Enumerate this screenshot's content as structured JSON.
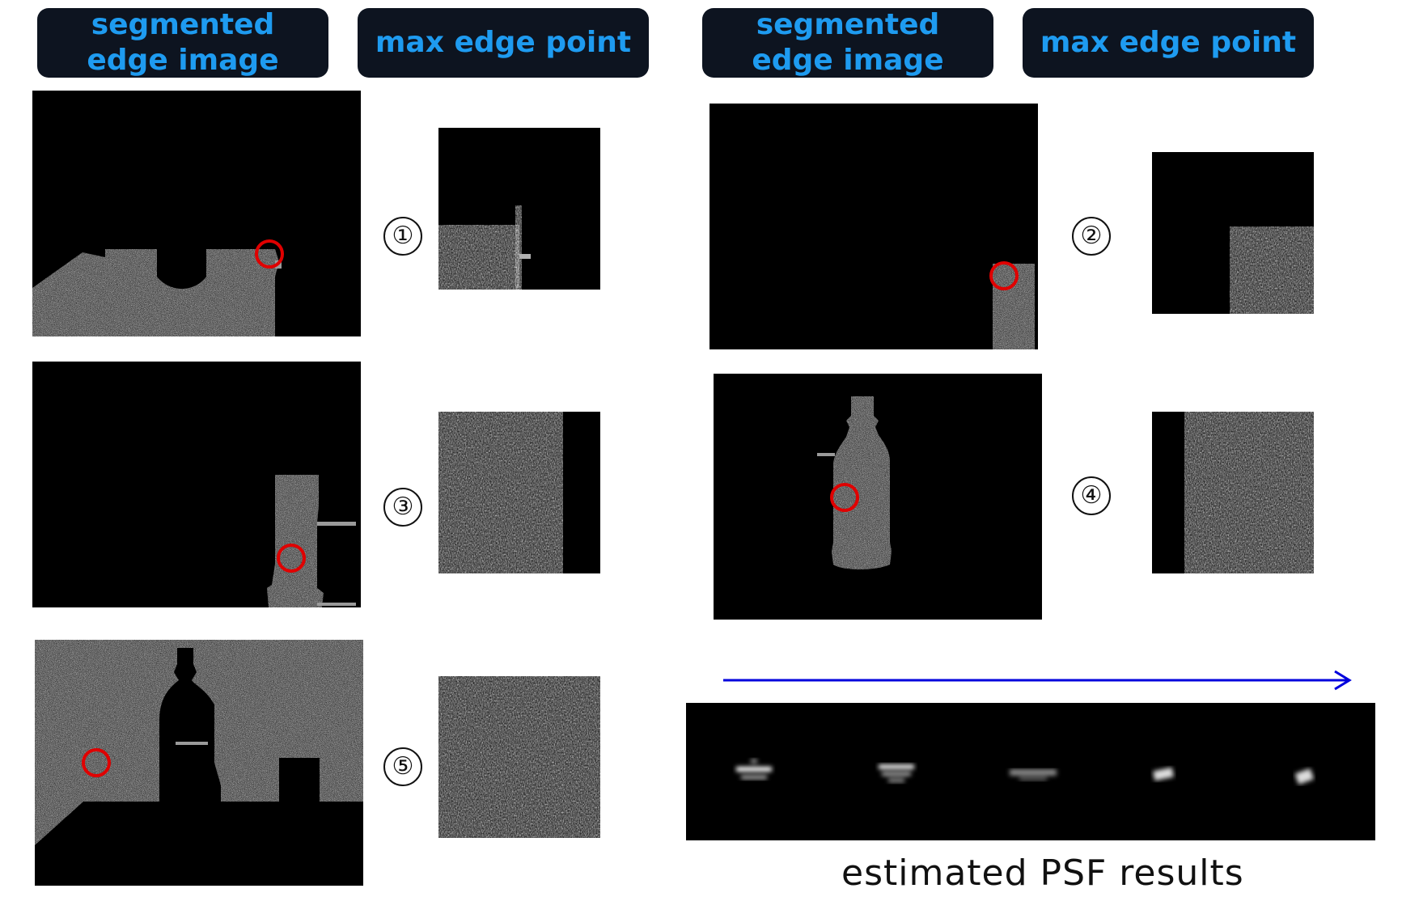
{
  "headers": {
    "left_segmented": "segmented edge image",
    "left_max": "max edge point",
    "right_segmented": "segmented edge image",
    "right_max": "max edge point"
  },
  "markers": [
    "①",
    "②",
    "③",
    "④",
    "⑤"
  ],
  "psf_caption": "estimated PSF results",
  "colors": {
    "header_bg": "#0d1420",
    "header_text": "#1e9bf0",
    "circle": "#e00000",
    "arrow": "#0000dd",
    "texture": "#9a9a9a"
  }
}
